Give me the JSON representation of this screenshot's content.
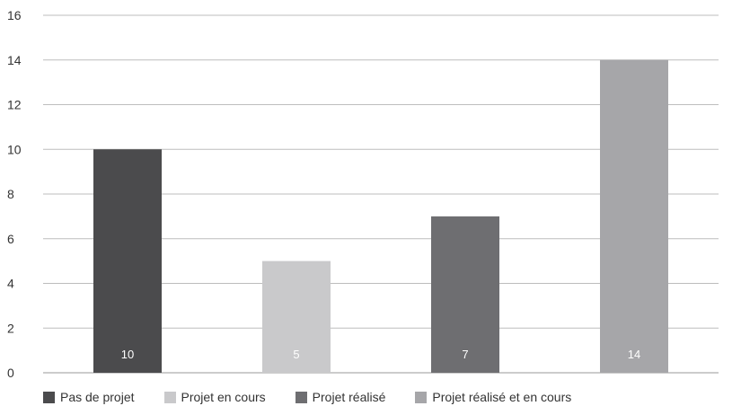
{
  "chart_data": {
    "type": "bar",
    "categories": [
      "Pas de projet",
      "Projet en cours",
      "Projet réalisé",
      "Projet réalisé et en cours"
    ],
    "values": [
      10,
      5,
      7,
      14
    ],
    "colors": [
      "#4b4b4d",
      "#c9c9cb",
      "#6e6e71",
      "#a6a6a9"
    ],
    "data_labels": [
      "10",
      "5",
      "7",
      "14"
    ],
    "title": "",
    "xlabel": "",
    "ylabel": "",
    "ylim": [
      0,
      16
    ],
    "yticks": [
      "0",
      "2",
      "4",
      "6",
      "8",
      "10",
      "12",
      "14",
      "16"
    ],
    "grid": true,
    "legend_position": "bottom"
  }
}
